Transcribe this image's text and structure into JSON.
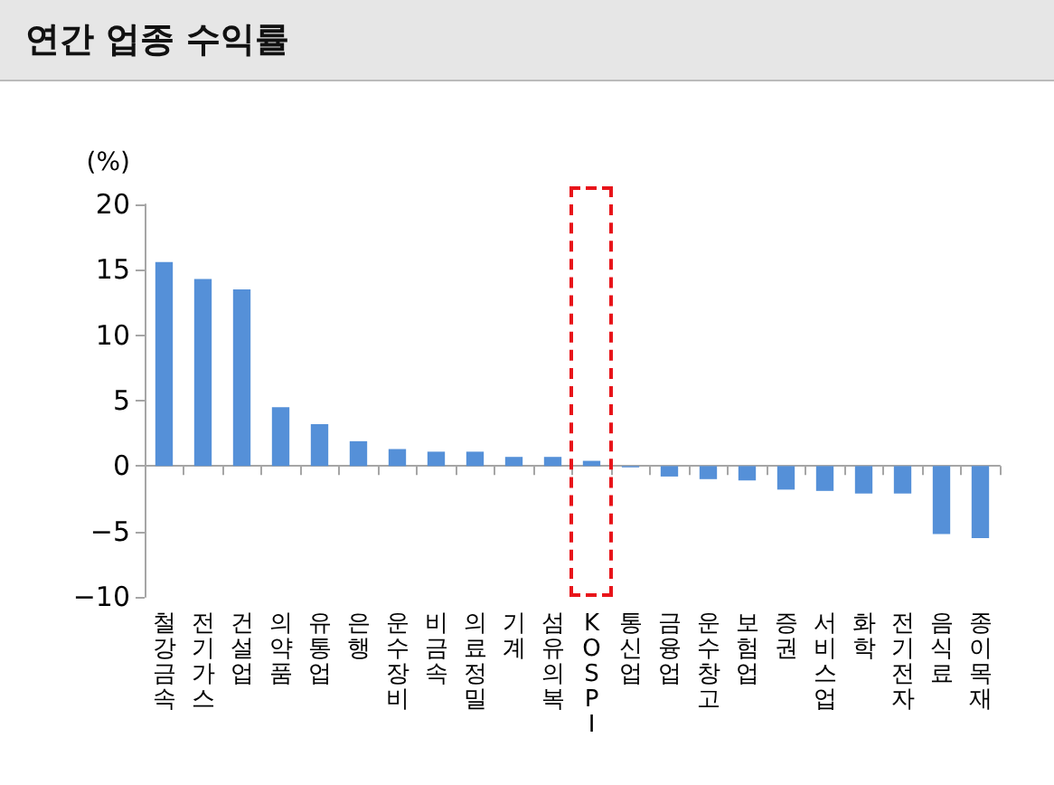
{
  "chart_data": {
    "type": "bar",
    "title": "연간 업종 수익률",
    "ylabel": "(%)",
    "categories": [
      "철강금속",
      "전기가스",
      "건설업",
      "의약품",
      "유통업",
      "은행",
      "운수장비",
      "비금속",
      "의료정밀",
      "기계",
      "섬유의복",
      "KOSPI",
      "통신업",
      "금융업",
      "운수창고",
      "보험업",
      "증권",
      "서비스업",
      "화학",
      "전기전자",
      "음식료",
      "종이목재"
    ],
    "values": [
      15.6,
      14.3,
      13.5,
      4.5,
      3.2,
      1.9,
      1.3,
      1.1,
      1.1,
      0.7,
      0.7,
      0.4,
      -0.1,
      -0.8,
      -1.0,
      -1.1,
      -1.8,
      -1.9,
      -2.1,
      -2.1,
      -5.2,
      -5.5
    ],
    "color": "#5590d8",
    "ylim": [
      -10,
      20
    ],
    "yticks": [
      -10,
      -5,
      0,
      5,
      10,
      15,
      20
    ]
  }
}
